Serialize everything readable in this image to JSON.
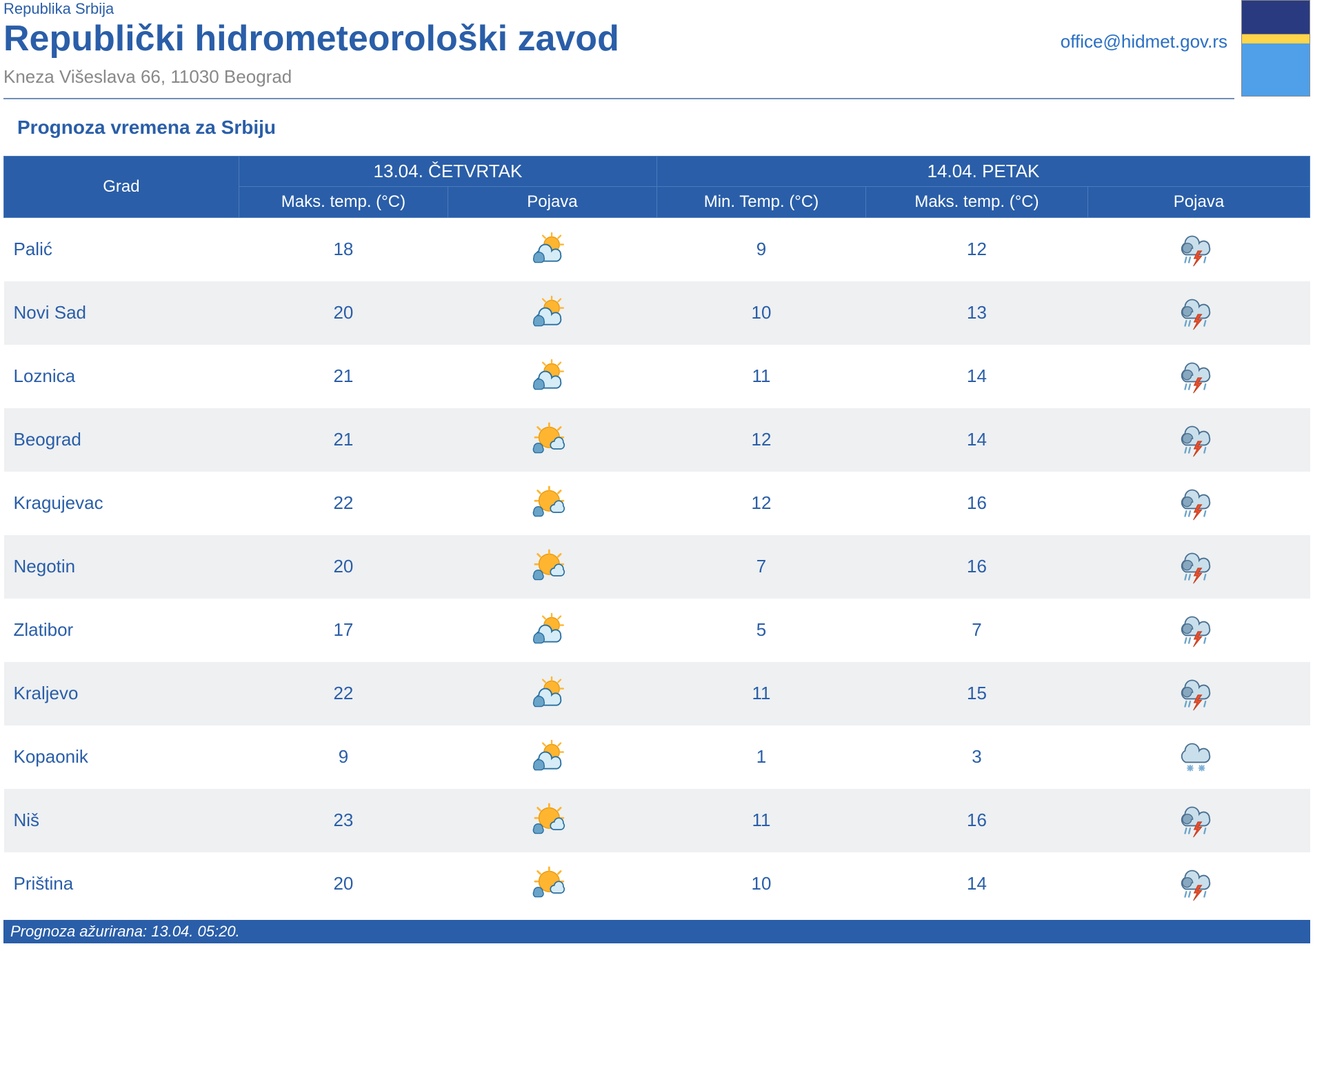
{
  "header": {
    "supertitle": "Republika Srbija",
    "title": "Republički hidrometeorološki zavod",
    "address": "Kneza Višeslava 66, 11030 Beograd",
    "email": "office@hidmet.gov.rs"
  },
  "colors": {
    "brand_blue": "#2a5ea8",
    "link_blue": "#2a6fc4",
    "address_gray": "#888888",
    "header_bg": "#2a5ea8",
    "header_border": "#4a7bbf",
    "row_alt_bg": "#eef0f2",
    "text_blue": "#2a5ea8",
    "white": "#ffffff"
  },
  "section_title": "Prognoza vremena za Srbiju",
  "table": {
    "col_city": "Grad",
    "day1": {
      "label": "13.04. ČETVRTAK",
      "col_max": "Maks. temp. (°C)",
      "col_pojava": "Pojava"
    },
    "day2": {
      "label": "14.04. PETAK",
      "col_min": "Min. Temp. (°C)",
      "col_max": "Maks. temp. (°C)",
      "col_pojava": "Pojava"
    },
    "rows": [
      {
        "city": "Palić",
        "d1_max": "18",
        "d1_icon": "partly_cloudy",
        "d2_min": "9",
        "d2_max": "12",
        "d2_icon": "thunderstorm"
      },
      {
        "city": "Novi Sad",
        "d1_max": "20",
        "d1_icon": "partly_cloudy",
        "d2_min": "10",
        "d2_max": "13",
        "d2_icon": "thunderstorm"
      },
      {
        "city": "Loznica",
        "d1_max": "21",
        "d1_icon": "partly_cloudy",
        "d2_min": "11",
        "d2_max": "14",
        "d2_icon": "thunderstorm"
      },
      {
        "city": "Beograd",
        "d1_max": "21",
        "d1_icon": "mostly_sunny",
        "d2_min": "12",
        "d2_max": "14",
        "d2_icon": "thunderstorm"
      },
      {
        "city": "Kragujevac",
        "d1_max": "22",
        "d1_icon": "mostly_sunny",
        "d2_min": "12",
        "d2_max": "16",
        "d2_icon": "thunderstorm"
      },
      {
        "city": "Negotin",
        "d1_max": "20",
        "d1_icon": "mostly_sunny",
        "d2_min": "7",
        "d2_max": "16",
        "d2_icon": "thunderstorm"
      },
      {
        "city": "Zlatibor",
        "d1_max": "17",
        "d1_icon": "partly_cloudy",
        "d2_min": "5",
        "d2_max": "7",
        "d2_icon": "thunderstorm"
      },
      {
        "city": "Kraljevo",
        "d1_max": "22",
        "d1_icon": "partly_cloudy",
        "d2_min": "11",
        "d2_max": "15",
        "d2_icon": "thunderstorm"
      },
      {
        "city": "Kopaonik",
        "d1_max": "9",
        "d1_icon": "partly_cloudy",
        "d2_min": "1",
        "d2_max": "3",
        "d2_icon": "snow"
      },
      {
        "city": "Niš",
        "d1_max": "23",
        "d1_icon": "mostly_sunny",
        "d2_min": "11",
        "d2_max": "16",
        "d2_icon": "thunderstorm"
      },
      {
        "city": "Priština",
        "d1_max": "20",
        "d1_icon": "mostly_sunny",
        "d2_min": "10",
        "d2_max": "14",
        "d2_icon": "thunderstorm"
      }
    ]
  },
  "footer_note": "Prognoza ažurirana:  13.04. 05:20.",
  "icon_palette": {
    "sun": "#ffb530",
    "sun_outline": "#e89a10",
    "cloud_light": "#d6ecf7",
    "cloud_dark": "#6aa4c9",
    "cloud_outline": "#2a6fa0",
    "storm_cloud": "#88a8c0",
    "storm_outline": "#4a6f90",
    "lightning": "#e85030",
    "snowflake": "#7aaed6"
  }
}
